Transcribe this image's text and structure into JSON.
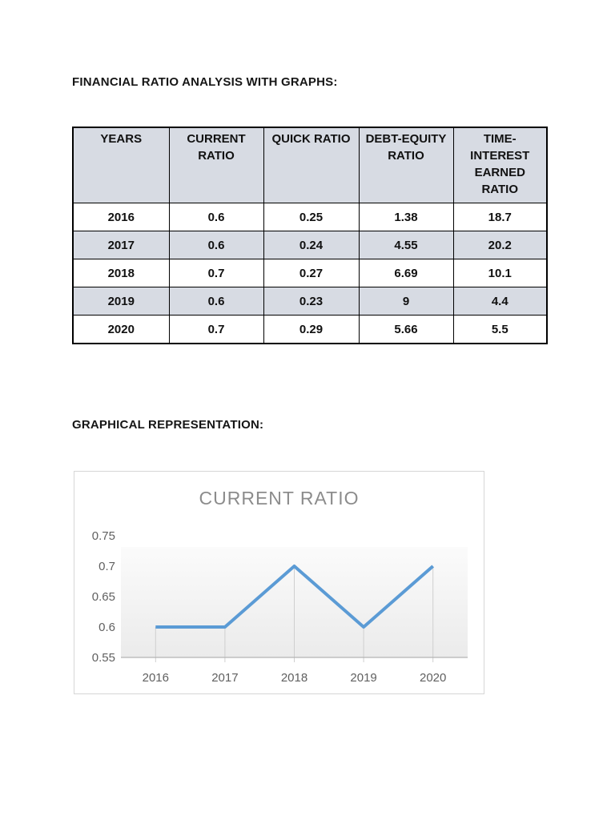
{
  "page": {
    "heading_financial": "FINANCIAL RATIO ANALYSIS WITH GRAPHS:",
    "heading_graphical": "GRAPHICAL REPRESENTATION:"
  },
  "table": {
    "headers": [
      "YEARS",
      "CURRENT\nRATIO",
      "QUICK RATIO",
      "DEBT-EQUITY\nRATIO",
      "TIME-\nINTEREST\nEARNED\nRATIO"
    ],
    "rows": [
      [
        "2016",
        "0.6",
        "0.25",
        "1.38",
        "18.7"
      ],
      [
        "2017",
        "0.6",
        "0.24",
        "4.55",
        "20.2"
      ],
      [
        "2018",
        "0.7",
        "0.27",
        "6.69",
        "10.1"
      ],
      [
        "2019",
        "0.6",
        "0.23",
        "9",
        "4.4"
      ],
      [
        "2020",
        "0.7",
        "0.29",
        "5.66",
        "5.5"
      ]
    ],
    "header_bg": "#d7dbe3",
    "stripe_bg": "#d7dbe3",
    "stripe_row_indices": [
      1,
      3
    ]
  },
  "chart_data": {
    "type": "line",
    "title": "CURRENT RATIO",
    "categories": [
      "2016",
      "2017",
      "2018",
      "2019",
      "2020"
    ],
    "series": [
      {
        "name": "CURRENT RATIO",
        "values": [
          0.6,
          0.6,
          0.7,
          0.6,
          0.7
        ]
      }
    ],
    "xlabel": "",
    "ylabel": "",
    "y_ticks": [
      0.55,
      0.6,
      0.65,
      0.7,
      0.75
    ],
    "ylim": [
      0.55,
      0.75
    ],
    "legend": "none",
    "grid": "drop-lines",
    "line_color": "#5b9bd5",
    "axis_line_color": "#b3b3b3",
    "drop_line_color": "#cfcfcf",
    "tick_label_color": "#606060",
    "title_color": "#8c8c8c",
    "plot_bg_top": "#fbfbfb",
    "plot_bg_bottom": "#ebebeb"
  }
}
